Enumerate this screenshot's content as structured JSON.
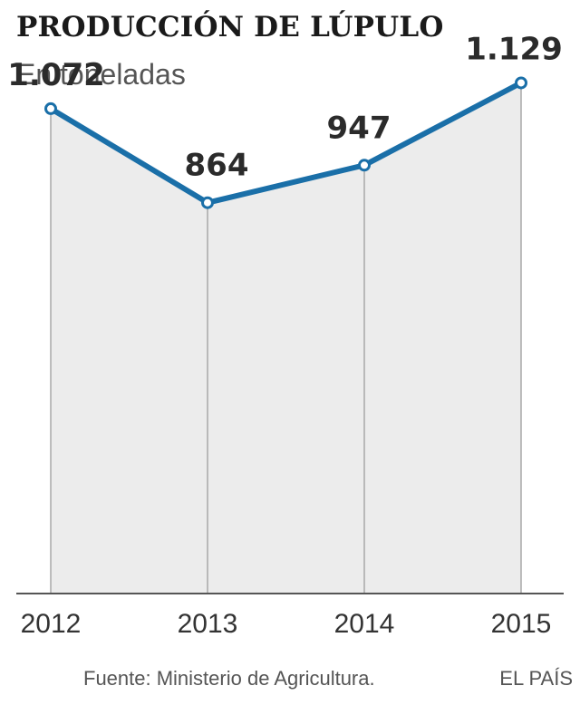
{
  "chart_data": {
    "type": "area",
    "title": "PRODUCCIÓN DE LÚPULO",
    "subtitle": "En toneladas",
    "categories": [
      "2012",
      "2013",
      "2014",
      "2015"
    ],
    "series": [
      {
        "values": [
          1072,
          864,
          947,
          1129
        ],
        "labels": [
          "1.072",
          "864",
          "947",
          "1.129"
        ]
      }
    ],
    "ylim": [
      0,
      1200
    ],
    "grid": false,
    "line_color": "#1a6fa8",
    "fill_color": "#ececec"
  },
  "footer": {
    "source": "Fuente: Ministerio de Agricultura.",
    "brand": "EL PAÍS"
  }
}
